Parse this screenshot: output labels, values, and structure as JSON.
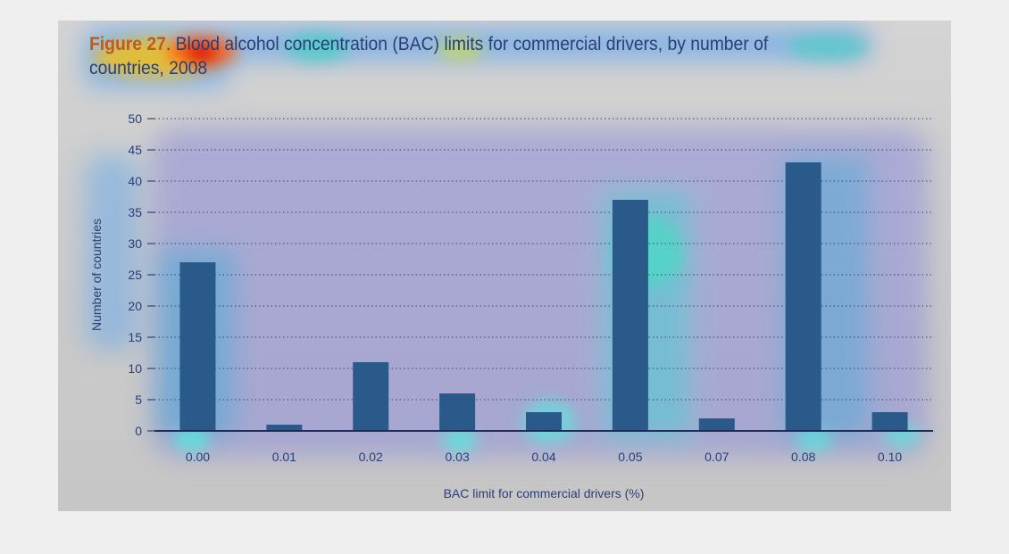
{
  "figure": {
    "label": "Figure 27",
    "title_rest": ". Blood alcohol concentration (BAC) limits for commercial drivers, by number of countries, 2008"
  },
  "chart_data": {
    "type": "bar",
    "categories": [
      "0.00",
      "0.01",
      "0.02",
      "0.03",
      "0.04",
      "0.05",
      "0.07",
      "0.08",
      "0.10"
    ],
    "values": [
      27,
      1,
      11,
      6,
      3,
      37,
      2,
      43,
      3
    ],
    "title": "Figure 27. Blood alcohol concentration (BAC) limits for commercial drivers, by number of countries, 2008",
    "xlabel": "BAC limit for commercial drivers (%)",
    "ylabel": "Number of countries",
    "ylim": [
      0,
      50
    ],
    "yticks": [
      0,
      5,
      10,
      15,
      20,
      25,
      30,
      35,
      40,
      45,
      50
    ],
    "grid": true,
    "grid_style": "dotted horizontal",
    "bar_color": "#2a5a8a",
    "axis_color": "#1e2a5a",
    "text_color": "#2a3e78"
  }
}
